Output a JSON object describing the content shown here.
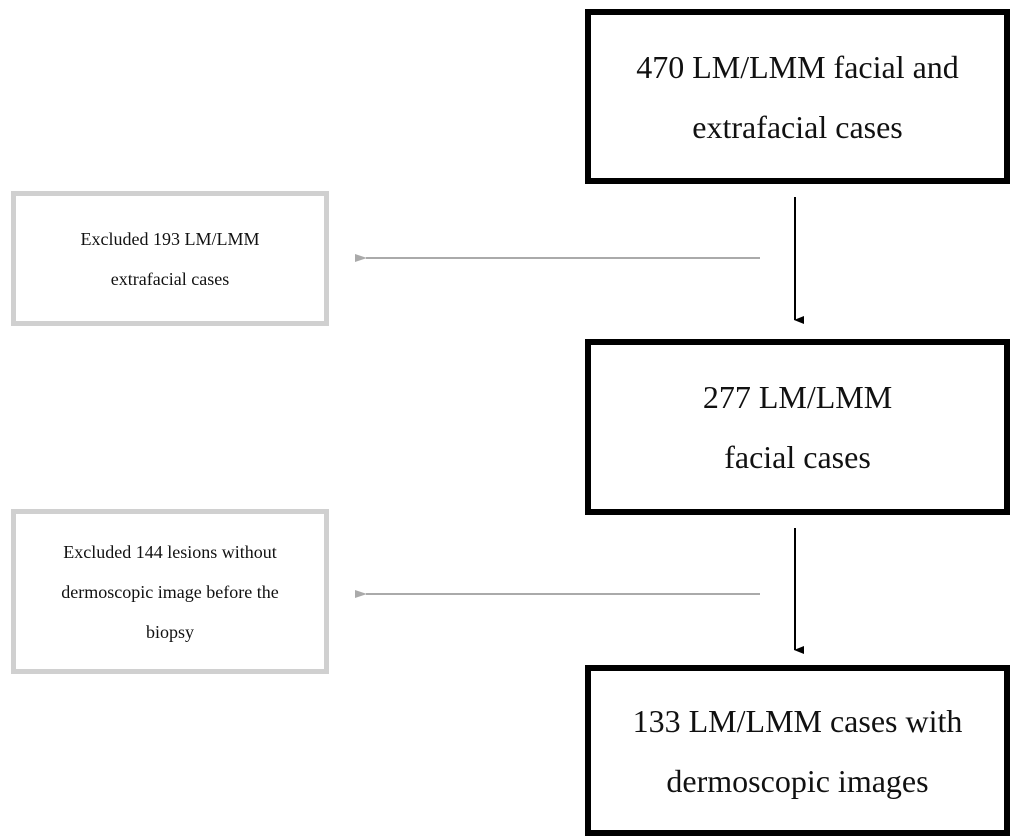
{
  "nodes": [
    {
      "lines": [
        "470 LM/LMM facial and",
        "extrafacial cases"
      ]
    },
    {
      "lines": [
        "Excluded 193 LM/LMM",
        "extrafacial cases"
      ]
    },
    {
      "lines": [
        "277 LM/LMM",
        "facial cases"
      ]
    },
    {
      "lines": [
        "Excluded 144 lesions without",
        "dermoscopic image before the",
        "biopsy"
      ]
    },
    {
      "lines": [
        "133 LM/LMM cases with",
        "dermoscopic images"
      ]
    }
  ]
}
